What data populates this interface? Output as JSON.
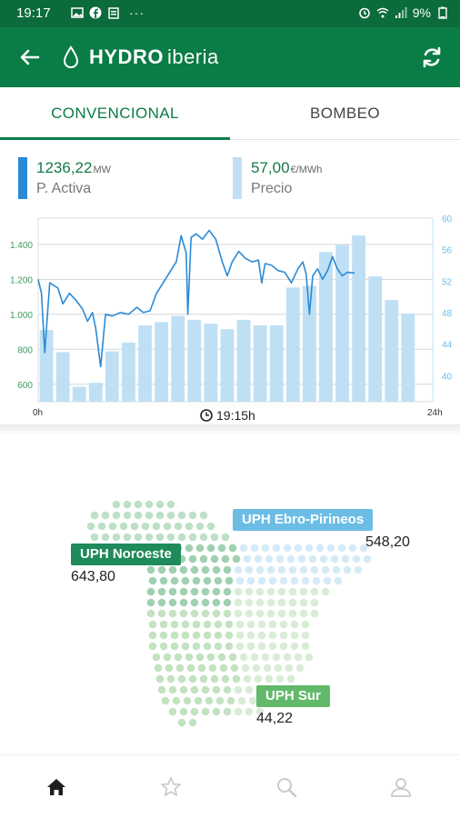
{
  "status_bar": {
    "time": "19:17",
    "battery": "9%",
    "left_icons": [
      "image-icon",
      "facebook-icon",
      "clipboard-icon",
      "more-icon"
    ],
    "right_icons": [
      "alarm-icon",
      "wifi-icon",
      "signal-icon",
      "battery-icon"
    ]
  },
  "app_bar": {
    "brand_bold": "HYDRO",
    "brand_light": "iberia",
    "back_icon": "arrow-left-icon",
    "logo_icon": "water-drop-icon",
    "refresh_icon": "refresh-icon"
  },
  "tabs": [
    {
      "label": "CONVENCIONAL",
      "active": true
    },
    {
      "label": "BOMBEO",
      "active": false
    }
  ],
  "metrics": {
    "power": {
      "value": "1236,22",
      "unit": "MW",
      "label": "P. Activa",
      "color": "#2b8ad6"
    },
    "price": {
      "value": "57,00",
      "unit": "€/MWh",
      "label": "Precio",
      "color": "#bfe0f4"
    }
  },
  "chart_data": {
    "type": "bar+line",
    "x_start_label": "0h",
    "x_end_label": "24h",
    "current_time_label": "19:15h",
    "left_axis": {
      "ticks": [
        "600",
        "800",
        "1.000",
        "1.200",
        "1.400"
      ],
      "range": [
        500,
        1550
      ]
    },
    "right_axis": {
      "ticks": [
        "40",
        "44",
        "48",
        "52",
        "56",
        "60"
      ],
      "range": [
        36.7,
        60
      ]
    },
    "bars_price": [
      45.8,
      43,
      38.6,
      39.1,
      43.1,
      44.2,
      46.4,
      46.8,
      47.6,
      47.1,
      46.6,
      45.9,
      47.1,
      46.4,
      46.4,
      51.2,
      51.4,
      55.7,
      56.6,
      57.8,
      52.6,
      49.6,
      47.9
    ],
    "line_power": [
      [
        0.0,
        1200
      ],
      [
        0.2,
        1120
      ],
      [
        0.4,
        780
      ],
      [
        0.7,
        1180
      ],
      [
        1.2,
        1150
      ],
      [
        1.5,
        1060
      ],
      [
        1.9,
        1120
      ],
      [
        2.3,
        1080
      ],
      [
        2.7,
        1030
      ],
      [
        3.0,
        960
      ],
      [
        3.3,
        1010
      ],
      [
        3.5,
        920
      ],
      [
        3.8,
        700
      ],
      [
        4.1,
        1000
      ],
      [
        4.5,
        990
      ],
      [
        5.0,
        1010
      ],
      [
        5.5,
        1000
      ],
      [
        6.0,
        1040
      ],
      [
        6.4,
        1010
      ],
      [
        6.8,
        1020
      ],
      [
        7.2,
        1120
      ],
      [
        7.6,
        1180
      ],
      [
        8.0,
        1240
      ],
      [
        8.4,
        1300
      ],
      [
        8.7,
        1450
      ],
      [
        9.0,
        1350
      ],
      [
        9.1,
        1000
      ],
      [
        9.3,
        1440
      ],
      [
        9.6,
        1460
      ],
      [
        10.0,
        1430
      ],
      [
        10.4,
        1480
      ],
      [
        10.8,
        1430
      ],
      [
        11.2,
        1300
      ],
      [
        11.5,
        1220
      ],
      [
        11.8,
        1300
      ],
      [
        12.2,
        1360
      ],
      [
        12.6,
        1320
      ],
      [
        13.0,
        1300
      ],
      [
        13.4,
        1310
      ],
      [
        13.6,
        1180
      ],
      [
        13.8,
        1290
      ],
      [
        14.2,
        1280
      ],
      [
        14.6,
        1250
      ],
      [
        15.0,
        1240
      ],
      [
        15.4,
        1180
      ],
      [
        15.8,
        1260
      ],
      [
        16.1,
        1300
      ],
      [
        16.3,
        1230
      ],
      [
        16.5,
        1000
      ],
      [
        16.7,
        1220
      ],
      [
        17.0,
        1260
      ],
      [
        17.3,
        1200
      ],
      [
        17.6,
        1250
      ],
      [
        17.9,
        1330
      ],
      [
        18.2,
        1260
      ],
      [
        18.5,
        1220
      ],
      [
        18.8,
        1240
      ],
      [
        19.25,
        1236
      ]
    ]
  },
  "map": {
    "regions": [
      {
        "name": "UPH Noroeste",
        "value": "643,80",
        "color": "#1f8a5a"
      },
      {
        "name": "UPH Ebro-Pirineos",
        "value": "548,20",
        "color": "#6bbde6"
      },
      {
        "name": "UPH Sur",
        "value": "44,22",
        "color": "#62b96a"
      }
    ]
  },
  "bottom_nav": [
    {
      "icon": "home-icon",
      "active": true
    },
    {
      "icon": "star-icon",
      "active": false
    },
    {
      "icon": "search-icon",
      "active": false
    },
    {
      "icon": "person-icon",
      "active": false
    }
  ]
}
